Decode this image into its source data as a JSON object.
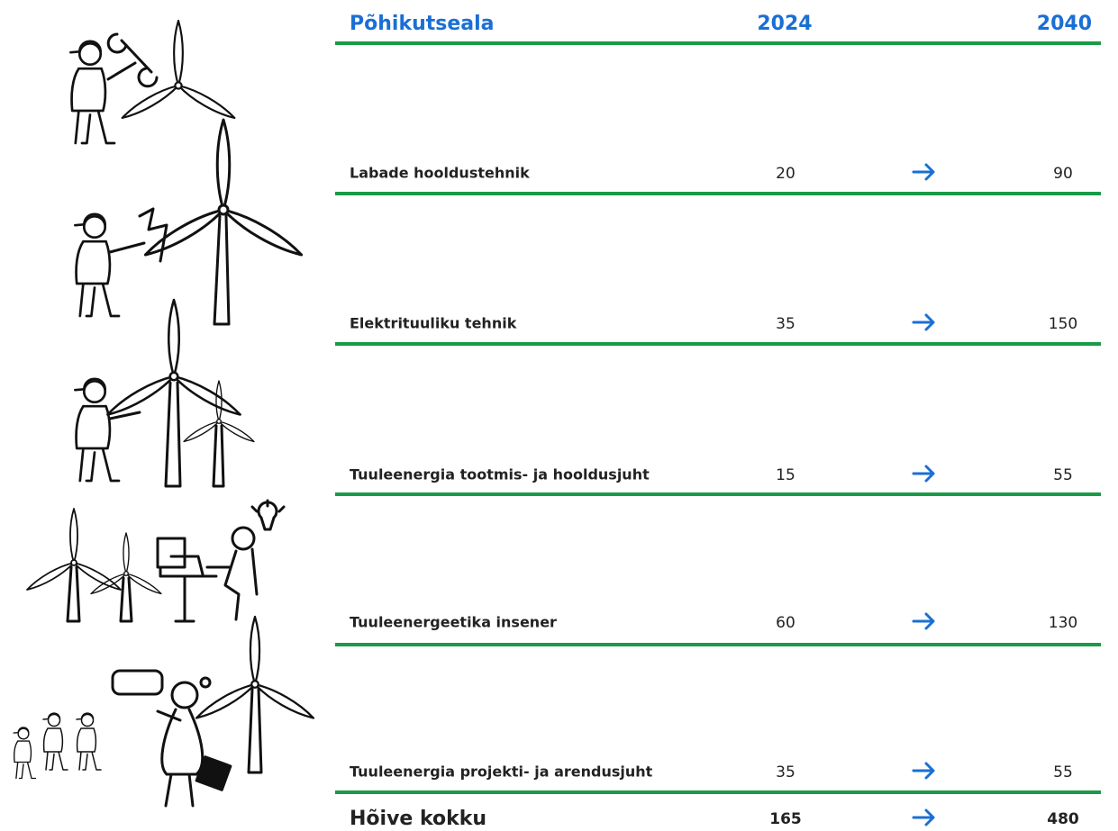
{
  "table": {
    "header": [
      "Põhikutseala",
      "2024",
      "2040"
    ],
    "rows": [
      [
        "Labade hooldustehnik",
        20,
        90
      ],
      [
        "Elektrituuliku tehnik",
        35,
        150
      ],
      [
        "Tuuleenergia tootmis- ja hooldusjuht",
        15,
        55
      ],
      [
        "Tuuleenergeetika insener",
        60,
        130
      ],
      [
        "Tuuleenergia projekti- ja arendusjuht",
        35,
        55
      ]
    ],
    "total": [
      "Hõive kokku",
      165,
      480
    ]
  }
}
